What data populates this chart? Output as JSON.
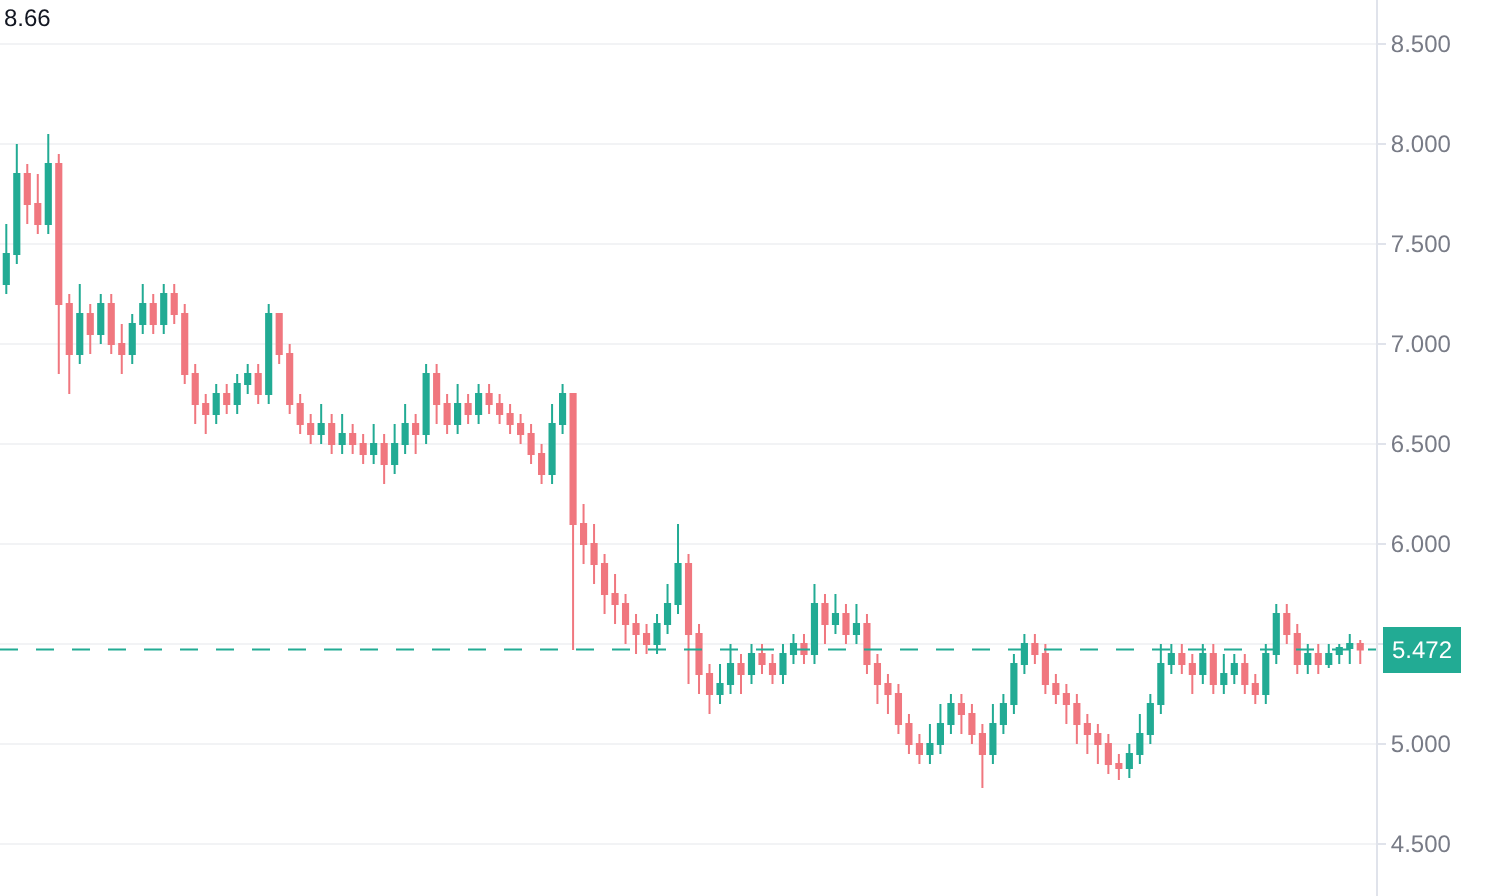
{
  "chart_data": {
    "type": "candlestick",
    "categories": [
      null,
      null,
      null,
      null,
      null,
      null,
      null,
      null,
      null,
      null,
      null,
      null,
      null,
      null,
      null,
      null,
      null,
      null,
      null,
      null,
      null,
      null,
      null,
      null,
      null,
      null,
      null,
      null,
      null,
      null,
      null,
      null,
      null,
      null,
      null,
      null,
      null,
      null,
      null,
      null,
      null,
      null,
      null,
      null,
      null,
      null,
      null,
      null,
      null,
      null,
      null,
      null,
      null,
      null,
      null,
      null,
      null,
      null,
      null,
      null,
      null,
      null,
      null,
      null,
      null,
      null,
      null,
      null,
      null,
      null,
      null,
      null,
      null,
      null,
      null,
      null,
      null,
      null,
      null,
      null,
      null,
      null,
      null,
      null,
      null,
      null,
      null,
      null,
      null,
      null,
      null,
      null,
      null,
      null,
      null,
      null,
      null,
      null,
      null,
      null,
      null,
      null,
      null,
      null,
      null,
      null,
      null,
      null,
      null,
      null,
      null,
      null,
      null,
      null,
      null,
      null,
      null,
      null,
      null,
      null,
      null,
      null,
      null,
      null,
      null,
      null,
      null,
      null,
      null,
      null
    ],
    "ohlc": [
      [
        7.3,
        7.6,
        7.25,
        7.45
      ],
      [
        7.45,
        8.0,
        7.4,
        7.85
      ],
      [
        7.85,
        7.9,
        7.6,
        7.7
      ],
      [
        7.7,
        7.85,
        7.55,
        7.6
      ],
      [
        7.6,
        8.05,
        7.55,
        7.9
      ],
      [
        7.9,
        7.95,
        6.85,
        7.2
      ],
      [
        7.2,
        7.25,
        6.75,
        6.95
      ],
      [
        6.95,
        7.3,
        6.9,
        7.15
      ],
      [
        7.15,
        7.2,
        6.95,
        7.05
      ],
      [
        7.05,
        7.25,
        7.0,
        7.2
      ],
      [
        7.2,
        7.25,
        6.95,
        7.0
      ],
      [
        7.0,
        7.1,
        6.85,
        6.95
      ],
      [
        6.95,
        7.15,
        6.9,
        7.1
      ],
      [
        7.1,
        7.3,
        7.05,
        7.2
      ],
      [
        7.2,
        7.25,
        7.05,
        7.1
      ],
      [
        7.1,
        7.3,
        7.05,
        7.25
      ],
      [
        7.25,
        7.3,
        7.1,
        7.15
      ],
      [
        7.15,
        7.2,
        6.8,
        6.85
      ],
      [
        6.85,
        6.9,
        6.6,
        6.7
      ],
      [
        6.7,
        6.75,
        6.55,
        6.65
      ],
      [
        6.65,
        6.8,
        6.6,
        6.75
      ],
      [
        6.75,
        6.8,
        6.65,
        6.7
      ],
      [
        6.7,
        6.85,
        6.65,
        6.8
      ],
      [
        6.8,
        6.9,
        6.75,
        6.85
      ],
      [
        6.85,
        6.9,
        6.7,
        6.75
      ],
      [
        6.75,
        7.2,
        6.7,
        7.15
      ],
      [
        7.15,
        7.15,
        6.9,
        6.95
      ],
      [
        6.95,
        7.0,
        6.65,
        6.7
      ],
      [
        6.7,
        6.75,
        6.55,
        6.6
      ],
      [
        6.6,
        6.65,
        6.5,
        6.55
      ],
      [
        6.55,
        6.7,
        6.5,
        6.6
      ],
      [
        6.6,
        6.65,
        6.45,
        6.5
      ],
      [
        6.5,
        6.65,
        6.45,
        6.55
      ],
      [
        6.55,
        6.6,
        6.45,
        6.5
      ],
      [
        6.5,
        6.55,
        6.4,
        6.45
      ],
      [
        6.45,
        6.6,
        6.4,
        6.5
      ],
      [
        6.5,
        6.55,
        6.3,
        6.4
      ],
      [
        6.4,
        6.6,
        6.35,
        6.5
      ],
      [
        6.5,
        6.7,
        6.45,
        6.6
      ],
      [
        6.6,
        6.65,
        6.45,
        6.55
      ],
      [
        6.55,
        6.9,
        6.5,
        6.85
      ],
      [
        6.85,
        6.9,
        6.6,
        6.7
      ],
      [
        6.7,
        6.75,
        6.55,
        6.6
      ],
      [
        6.6,
        6.8,
        6.55,
        6.7
      ],
      [
        6.7,
        6.75,
        6.6,
        6.65
      ],
      [
        6.65,
        6.8,
        6.6,
        6.75
      ],
      [
        6.75,
        6.8,
        6.65,
        6.7
      ],
      [
        6.7,
        6.75,
        6.6,
        6.65
      ],
      [
        6.65,
        6.7,
        6.55,
        6.6
      ],
      [
        6.6,
        6.65,
        6.5,
        6.55
      ],
      [
        6.55,
        6.6,
        6.4,
        6.45
      ],
      [
        6.45,
        6.5,
        6.3,
        6.35
      ],
      [
        6.35,
        6.7,
        6.3,
        6.6
      ],
      [
        6.6,
        6.8,
        6.55,
        6.75
      ],
      [
        6.75,
        6.75,
        5.47,
        6.1
      ],
      [
        6.1,
        6.2,
        5.9,
        6.0
      ],
      [
        6.0,
        6.1,
        5.8,
        5.9
      ],
      [
        5.9,
        5.95,
        5.65,
        5.75
      ],
      [
        5.75,
        5.85,
        5.6,
        5.7
      ],
      [
        5.7,
        5.75,
        5.5,
        5.6
      ],
      [
        5.6,
        5.65,
        5.45,
        5.55
      ],
      [
        5.55,
        5.6,
        5.45,
        5.5
      ],
      [
        5.5,
        5.65,
        5.45,
        5.6
      ],
      [
        5.6,
        5.8,
        5.55,
        5.7
      ],
      [
        5.7,
        6.1,
        5.65,
        5.9
      ],
      [
        5.9,
        5.95,
        5.3,
        5.55
      ],
      [
        5.55,
        5.6,
        5.25,
        5.35
      ],
      [
        5.35,
        5.4,
        5.15,
        5.25
      ],
      [
        5.25,
        5.4,
        5.2,
        5.3
      ],
      [
        5.3,
        5.5,
        5.25,
        5.4
      ],
      [
        5.4,
        5.45,
        5.25,
        5.35
      ],
      [
        5.35,
        5.5,
        5.3,
        5.45
      ],
      [
        5.45,
        5.5,
        5.35,
        5.4
      ],
      [
        5.4,
        5.45,
        5.3,
        5.35
      ],
      [
        5.35,
        5.5,
        5.3,
        5.45
      ],
      [
        5.45,
        5.55,
        5.4,
        5.5
      ],
      [
        5.5,
        5.55,
        5.4,
        5.45
      ],
      [
        5.45,
        5.8,
        5.4,
        5.7
      ],
      [
        5.7,
        5.75,
        5.5,
        5.6
      ],
      [
        5.6,
        5.75,
        5.55,
        5.65
      ],
      [
        5.65,
        5.7,
        5.5,
        5.55
      ],
      [
        5.55,
        5.7,
        5.5,
        5.6
      ],
      [
        5.6,
        5.65,
        5.35,
        5.4
      ],
      [
        5.4,
        5.45,
        5.2,
        5.3
      ],
      [
        5.3,
        5.35,
        5.15,
        5.25
      ],
      [
        5.25,
        5.3,
        5.05,
        5.1
      ],
      [
        5.1,
        5.15,
        4.95,
        5.0
      ],
      [
        5.0,
        5.05,
        4.9,
        4.95
      ],
      [
        4.95,
        5.1,
        4.9,
        5.0
      ],
      [
        5.0,
        5.2,
        4.95,
        5.1
      ],
      [
        5.1,
        5.25,
        5.05,
        5.2
      ],
      [
        5.2,
        5.25,
        5.05,
        5.15
      ],
      [
        5.15,
        5.2,
        5.0,
        5.05
      ],
      [
        5.05,
        5.1,
        4.78,
        4.95
      ],
      [
        4.95,
        5.2,
        4.9,
        5.1
      ],
      [
        5.1,
        5.25,
        5.05,
        5.2
      ],
      [
        5.2,
        5.45,
        5.15,
        5.4
      ],
      [
        5.4,
        5.55,
        5.35,
        5.5
      ],
      [
        5.5,
        5.55,
        5.4,
        5.45
      ],
      [
        5.45,
        5.5,
        5.25,
        5.3
      ],
      [
        5.3,
        5.35,
        5.2,
        5.25
      ],
      [
        5.25,
        5.3,
        5.1,
        5.2
      ],
      [
        5.2,
        5.25,
        5.0,
        5.1
      ],
      [
        5.1,
        5.15,
        4.95,
        5.05
      ],
      [
        5.05,
        5.1,
        4.9,
        5.0
      ],
      [
        5.0,
        5.05,
        4.85,
        4.9
      ],
      [
        4.9,
        4.95,
        4.82,
        4.88
      ],
      [
        4.88,
        5.0,
        4.83,
        4.95
      ],
      [
        4.95,
        5.15,
        4.9,
        5.05
      ],
      [
        5.05,
        5.25,
        5.0,
        5.2
      ],
      [
        5.2,
        5.5,
        5.15,
        5.4
      ],
      [
        5.4,
        5.5,
        5.35,
        5.45
      ],
      [
        5.45,
        5.5,
        5.35,
        5.4
      ],
      [
        5.4,
        5.45,
        5.25,
        5.35
      ],
      [
        5.35,
        5.5,
        5.3,
        5.45
      ],
      [
        5.45,
        5.5,
        5.25,
        5.3
      ],
      [
        5.3,
        5.45,
        5.25,
        5.35
      ],
      [
        5.35,
        5.45,
        5.3,
        5.4
      ],
      [
        5.4,
        5.45,
        5.25,
        5.3
      ],
      [
        5.3,
        5.35,
        5.2,
        5.25
      ],
      [
        5.25,
        5.5,
        5.2,
        5.45
      ],
      [
        5.45,
        5.7,
        5.4,
        5.65
      ],
      [
        5.65,
        5.7,
        5.5,
        5.55
      ],
      [
        5.55,
        5.6,
        5.35,
        5.4
      ],
      [
        5.4,
        5.5,
        5.35,
        5.45
      ],
      [
        5.45,
        5.5,
        5.35,
        5.4
      ],
      [
        5.4,
        5.5,
        5.38,
        5.45
      ],
      [
        5.45,
        5.5,
        5.4,
        5.48
      ],
      [
        5.48,
        5.55,
        5.4,
        5.5
      ],
      [
        5.5,
        5.52,
        5.4,
        5.472
      ]
    ],
    "colors": [
      "#22ab94",
      "#22ab94",
      "#f0777f",
      "#f0777f",
      "#22ab94",
      "#f0777f",
      "#f0777f",
      "#22ab94",
      "#f0777f",
      "#22ab94",
      "#f0777f",
      "#f0777f",
      "#22ab94",
      "#22ab94",
      "#f0777f",
      "#22ab94",
      "#f0777f",
      "#f0777f",
      "#f0777f",
      "#f0777f",
      "#22ab94",
      "#f0777f",
      "#22ab94",
      "#22ab94",
      "#f0777f",
      "#22ab94",
      "#f0777f",
      "#f0777f",
      "#f0777f",
      "#f0777f",
      "#22ab94",
      "#f0777f",
      "#22ab94",
      "#f0777f",
      "#f0777f",
      "#22ab94",
      "#f0777f",
      "#22ab94",
      "#22ab94",
      "#f0777f",
      "#22ab94",
      "#f0777f",
      "#f0777f",
      "#22ab94",
      "#f0777f",
      "#22ab94",
      "#f0777f",
      "#f0777f",
      "#f0777f",
      "#f0777f",
      "#f0777f",
      "#f0777f",
      "#22ab94",
      "#22ab94",
      "#f0777f",
      "#f0777f",
      "#f0777f",
      "#f0777f",
      "#f0777f",
      "#f0777f",
      "#f0777f",
      "#f0777f",
      "#22ab94",
      "#22ab94",
      "#22ab94",
      "#f0777f",
      "#f0777f",
      "#f0777f",
      "#22ab94",
      "#22ab94",
      "#f0777f",
      "#22ab94",
      "#f0777f",
      "#f0777f",
      "#22ab94",
      "#22ab94",
      "#f0777f",
      "#22ab94",
      "#f0777f",
      "#22ab94",
      "#f0777f",
      "#22ab94",
      "#f0777f",
      "#f0777f",
      "#f0777f",
      "#f0777f",
      "#f0777f",
      "#f0777f",
      "#22ab94",
      "#22ab94",
      "#22ab94",
      "#f0777f",
      "#f0777f",
      "#f0777f",
      "#22ab94",
      "#22ab94",
      "#22ab94",
      "#22ab94",
      "#f0777f",
      "#f0777f",
      "#f0777f",
      "#f0777f",
      "#f0777f",
      "#f0777f",
      "#f0777f",
      "#f0777f",
      "#f0777f",
      "#22ab94",
      "#22ab94",
      "#22ab94",
      "#22ab94",
      "#22ab94",
      "#f0777f",
      "#f0777f",
      "#22ab94",
      "#f0777f",
      "#22ab94",
      "#22ab94",
      "#f0777f",
      "#f0777f",
      "#22ab94",
      "#22ab94",
      "#f0777f",
      "#f0777f",
      "#22ab94",
      "#f0777f",
      "#22ab94",
      "#22ab94",
      "#22ab94",
      "#f0777f"
    ],
    "ylim": [
      4.24,
      8.72
    ],
    "yticks": [
      {
        "value": 4.5,
        "label": "4.500"
      },
      {
        "value": 5,
        "label": "5.000"
      },
      {
        "value": 5.5,
        "label": null
      },
      {
        "value": 6,
        "label": "6.000"
      },
      {
        "value": 6.5,
        "label": "6.500"
      },
      {
        "value": 7,
        "label": "7.000"
      },
      {
        "value": 7.5,
        "label": "7.500"
      },
      {
        "value": 8,
        "label": "8.000"
      },
      {
        "value": 8.5,
        "label": "8.500"
      }
    ],
    "tick_labels": "y",
    "grid": "y",
    "ref_lines": [
      {
        "axis": "y",
        "value": 5.472,
        "label": "5.472",
        "color": "#22ab94",
        "line_style": "dashed"
      }
    ],
    "annotations": [
      "8.66"
    ]
  }
}
